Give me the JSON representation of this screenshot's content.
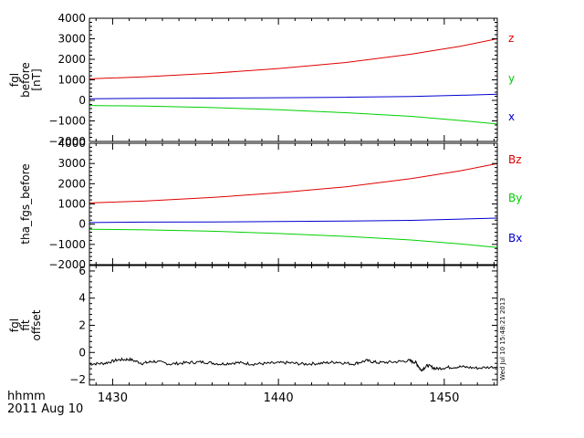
{
  "footer": {
    "time_label": "hhmm",
    "date_label": "2011 Aug 10"
  },
  "timestamp": "Wed Jul 10 15:48:21 2013",
  "chart_data": [
    {
      "type": "line",
      "ylabel_lines": [
        "fgl",
        "before",
        "[nT]"
      ],
      "ylim": [
        -2000,
        4000
      ],
      "yticks": [
        -2000,
        -1000,
        0,
        1000,
        2000,
        3000,
        4000
      ],
      "ytick_labels": [
        "−2000",
        "−1000",
        "0",
        "1000",
        "2000",
        "3000",
        "4000"
      ],
      "xlim": [
        1428.6,
        1453.2
      ],
      "series": [
        {
          "name": "z",
          "color": "#e00000",
          "x": [
            1428.6,
            1432,
            1436,
            1440,
            1444,
            1448,
            1451,
            1453.2
          ],
          "y": [
            1050,
            1150,
            1320,
            1550,
            1840,
            2250,
            2640,
            3000
          ]
        },
        {
          "name": "y",
          "color": "#00d000",
          "x": [
            1428.6,
            1432,
            1436,
            1440,
            1444,
            1448,
            1451,
            1453.2
          ],
          "y": [
            -250,
            -280,
            -350,
            -460,
            -600,
            -780,
            -980,
            -1150
          ]
        },
        {
          "name": "x",
          "color": "#0000d0",
          "x": [
            1428.6,
            1432,
            1436,
            1440,
            1444,
            1448,
            1451,
            1453.2
          ],
          "y": [
            80,
            100,
            110,
            130,
            150,
            190,
            250,
            300
          ]
        }
      ]
    },
    {
      "type": "line",
      "ylabel_lines": [
        "tha_fgs_before"
      ],
      "ylim": [
        -2000,
        4000
      ],
      "yticks": [
        -2000,
        -1000,
        0,
        1000,
        2000,
        3000,
        4000
      ],
      "ytick_labels": [
        "−2000",
        "−1000",
        "0",
        "1000",
        "2000",
        "3000",
        "4000"
      ],
      "xlim": [
        1428.6,
        1453.2
      ],
      "series": [
        {
          "name": "Bz",
          "color": "#e00000",
          "x": [
            1428.6,
            1432,
            1436,
            1440,
            1444,
            1448,
            1451,
            1453.2
          ],
          "y": [
            1050,
            1150,
            1320,
            1550,
            1840,
            2250,
            2640,
            3000
          ]
        },
        {
          "name": "By",
          "color": "#00d000",
          "x": [
            1428.6,
            1432,
            1436,
            1440,
            1444,
            1448,
            1451,
            1453.2
          ],
          "y": [
            -250,
            -280,
            -350,
            -460,
            -600,
            -780,
            -980,
            -1150
          ]
        },
        {
          "name": "Bx",
          "color": "#0000d0",
          "x": [
            1428.6,
            1432,
            1436,
            1440,
            1444,
            1448,
            1451,
            1453.2
          ],
          "y": [
            80,
            100,
            110,
            130,
            150,
            190,
            250,
            300
          ]
        }
      ]
    },
    {
      "type": "line",
      "ylabel_lines": [
        "fgl",
        "fit",
        "offset"
      ],
      "ylim": [
        -2.4,
        6.4
      ],
      "yticks": [
        -2,
        0,
        2,
        4,
        6
      ],
      "ytick_labels": [
        "−2",
        "0",
        "2",
        "4",
        "6"
      ],
      "xlim": [
        1428.6,
        1453.2
      ],
      "xticks": [
        1430,
        1440,
        1450
      ],
      "xtick_labels": [
        "1430",
        "1440",
        "1450"
      ],
      "series": [
        {
          "name": "",
          "color": "#000000",
          "x": [
            1428.6,
            1429.5,
            1430.3,
            1431,
            1431.8,
            1432.5,
            1433.5,
            1434.5,
            1435.5,
            1436.5,
            1437.5,
            1438.5,
            1439.5,
            1440.5,
            1441.5,
            1442.5,
            1443.5,
            1444.5,
            1445.3,
            1446,
            1447,
            1447.9,
            1448.3,
            1448.6,
            1449,
            1449.5,
            1450.2,
            1451,
            1452,
            1453.2
          ],
          "y": [
            -0.85,
            -0.8,
            -0.55,
            -0.5,
            -0.8,
            -0.65,
            -0.85,
            -0.75,
            -0.7,
            -0.85,
            -0.75,
            -0.85,
            -0.8,
            -0.75,
            -0.85,
            -0.8,
            -0.7,
            -0.85,
            -0.6,
            -0.75,
            -0.7,
            -0.6,
            -0.75,
            -1.3,
            -0.95,
            -1.2,
            -1.1,
            -1.05,
            -1.15,
            -1.05
          ]
        }
      ]
    }
  ]
}
